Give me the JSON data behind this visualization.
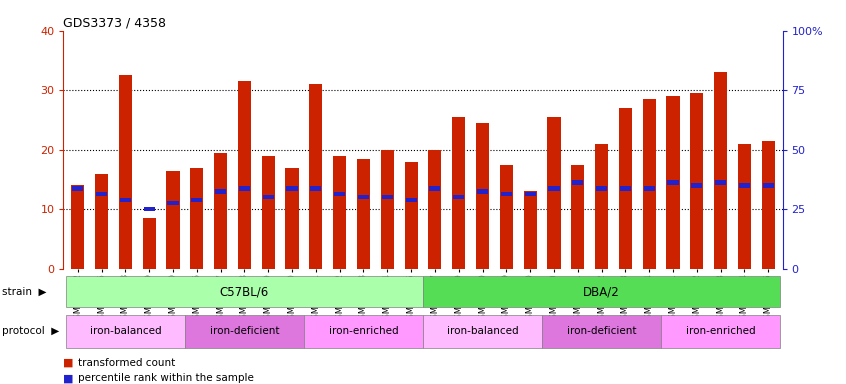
{
  "title": "GDS3373 / 4358",
  "samples": [
    "GSM262762",
    "GSM262765",
    "GSM262768",
    "GSM262769",
    "GSM262770",
    "GSM262796",
    "GSM262797",
    "GSM262798",
    "GSM262799",
    "GSM262800",
    "GSM262771",
    "GSM262772",
    "GSM262773",
    "GSM262794",
    "GSM262795",
    "GSM262817",
    "GSM262819",
    "GSM262820",
    "GSM262839",
    "GSM262840",
    "GSM262950",
    "GSM262951",
    "GSM262952",
    "GSM262953",
    "GSM262954",
    "GSM262841",
    "GSM262842",
    "GSM262843",
    "GSM262844",
    "GSM262845"
  ],
  "red_values": [
    14.0,
    16.0,
    32.5,
    8.5,
    16.5,
    17.0,
    19.5,
    31.5,
    19.0,
    17.0,
    31.0,
    19.0,
    18.5,
    20.0,
    18.0,
    20.0,
    25.5,
    24.5,
    17.5,
    13.0,
    25.5,
    17.5,
    21.0,
    27.0,
    28.5,
    29.0,
    29.5,
    33.0,
    21.0,
    21.5
  ],
  "blue_values": [
    13.5,
    12.5,
    11.5,
    10.0,
    11.0,
    11.5,
    13.0,
    13.5,
    12.0,
    13.5,
    13.5,
    12.5,
    12.0,
    12.0,
    11.5,
    13.5,
    12.0,
    13.0,
    12.5,
    12.5,
    13.5,
    14.5,
    13.5,
    13.5,
    13.5,
    14.5,
    14.0,
    14.5,
    14.0,
    14.0
  ],
  "strain_groups": [
    {
      "label": "C57BL/6",
      "start": 0,
      "end": 15,
      "color": "#aaffaa"
    },
    {
      "label": "DBA/2",
      "start": 15,
      "end": 30,
      "color": "#55dd55"
    }
  ],
  "protocol_groups": [
    {
      "label": "iron-balanced",
      "start": 0,
      "end": 5,
      "color": "#ffbbff"
    },
    {
      "label": "iron-deficient",
      "start": 5,
      "end": 10,
      "color": "#dd77dd"
    },
    {
      "label": "iron-enriched",
      "start": 10,
      "end": 15,
      "color": "#ff99ff"
    },
    {
      "label": "iron-balanced",
      "start": 15,
      "end": 20,
      "color": "#ffbbff"
    },
    {
      "label": "iron-deficient",
      "start": 20,
      "end": 25,
      "color": "#dd77dd"
    },
    {
      "label": "iron-enriched",
      "start": 25,
      "end": 30,
      "color": "#ff99ff"
    }
  ],
  "ylim_left": [
    0,
    40
  ],
  "ylim_right": [
    0,
    100
  ],
  "yticks_left": [
    0,
    10,
    20,
    30,
    40
  ],
  "yticks_right": [
    0,
    25,
    50,
    75,
    100
  ],
  "ytick_labels_right": [
    "0",
    "25",
    "50",
    "75",
    "100%"
  ],
  "red_color": "#cc2200",
  "blue_color": "#2222cc",
  "bar_width": 0.55,
  "background_color": "#ffffff",
  "grid_color": "black"
}
